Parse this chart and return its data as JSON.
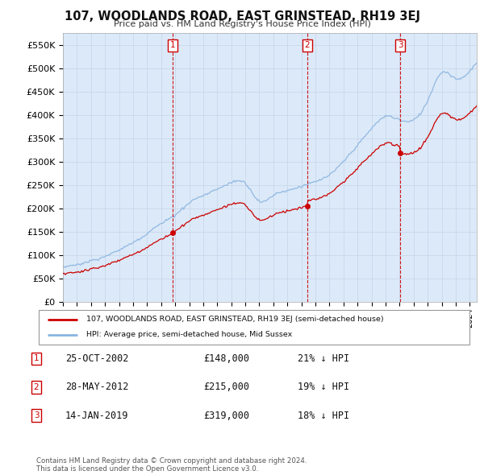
{
  "title": "107, WOODLANDS ROAD, EAST GRINSTEAD, RH19 3EJ",
  "subtitle": "Price paid vs. HM Land Registry's House Price Index (HPI)",
  "background_color": "#ffffff",
  "plot_bg_color": "#dce9f8",
  "grid_color": "#c8d8ec",
  "sale_color": "#cc0000",
  "hpi_color": "#89b4e0",
  "ylim": [
    0,
    575000
  ],
  "yticks": [
    0,
    50000,
    100000,
    150000,
    200000,
    250000,
    300000,
    350000,
    400000,
    450000,
    500000,
    550000
  ],
  "ytick_labels": [
    "£0",
    "£50K",
    "£100K",
    "£150K",
    "£200K",
    "£250K",
    "£300K",
    "£350K",
    "£400K",
    "£450K",
    "£500K",
    "£550K"
  ],
  "transactions": [
    {
      "num": 1,
      "date_str": "25-OCT-2002",
      "date_x": 2002.82,
      "price": 148000,
      "pct": "21%",
      "direction": "↓"
    },
    {
      "num": 2,
      "date_str": "28-MAY-2012",
      "date_x": 2012.41,
      "price": 215000,
      "pct": "19%",
      "direction": "↓"
    },
    {
      "num": 3,
      "date_str": "14-JAN-2019",
      "date_x": 2019.04,
      "price": 319000,
      "pct": "18%",
      "direction": "↓"
    }
  ],
  "legend_sale_label": "107, WOODLANDS ROAD, EAST GRINSTEAD, RH19 3EJ (semi-detached house)",
  "legend_hpi_label": "HPI: Average price, semi-detached house, Mid Sussex",
  "footnote": "Contains HM Land Registry data © Crown copyright and database right 2024.\nThis data is licensed under the Open Government Licence v3.0.",
  "xmin": 1995,
  "xmax": 2024.5
}
